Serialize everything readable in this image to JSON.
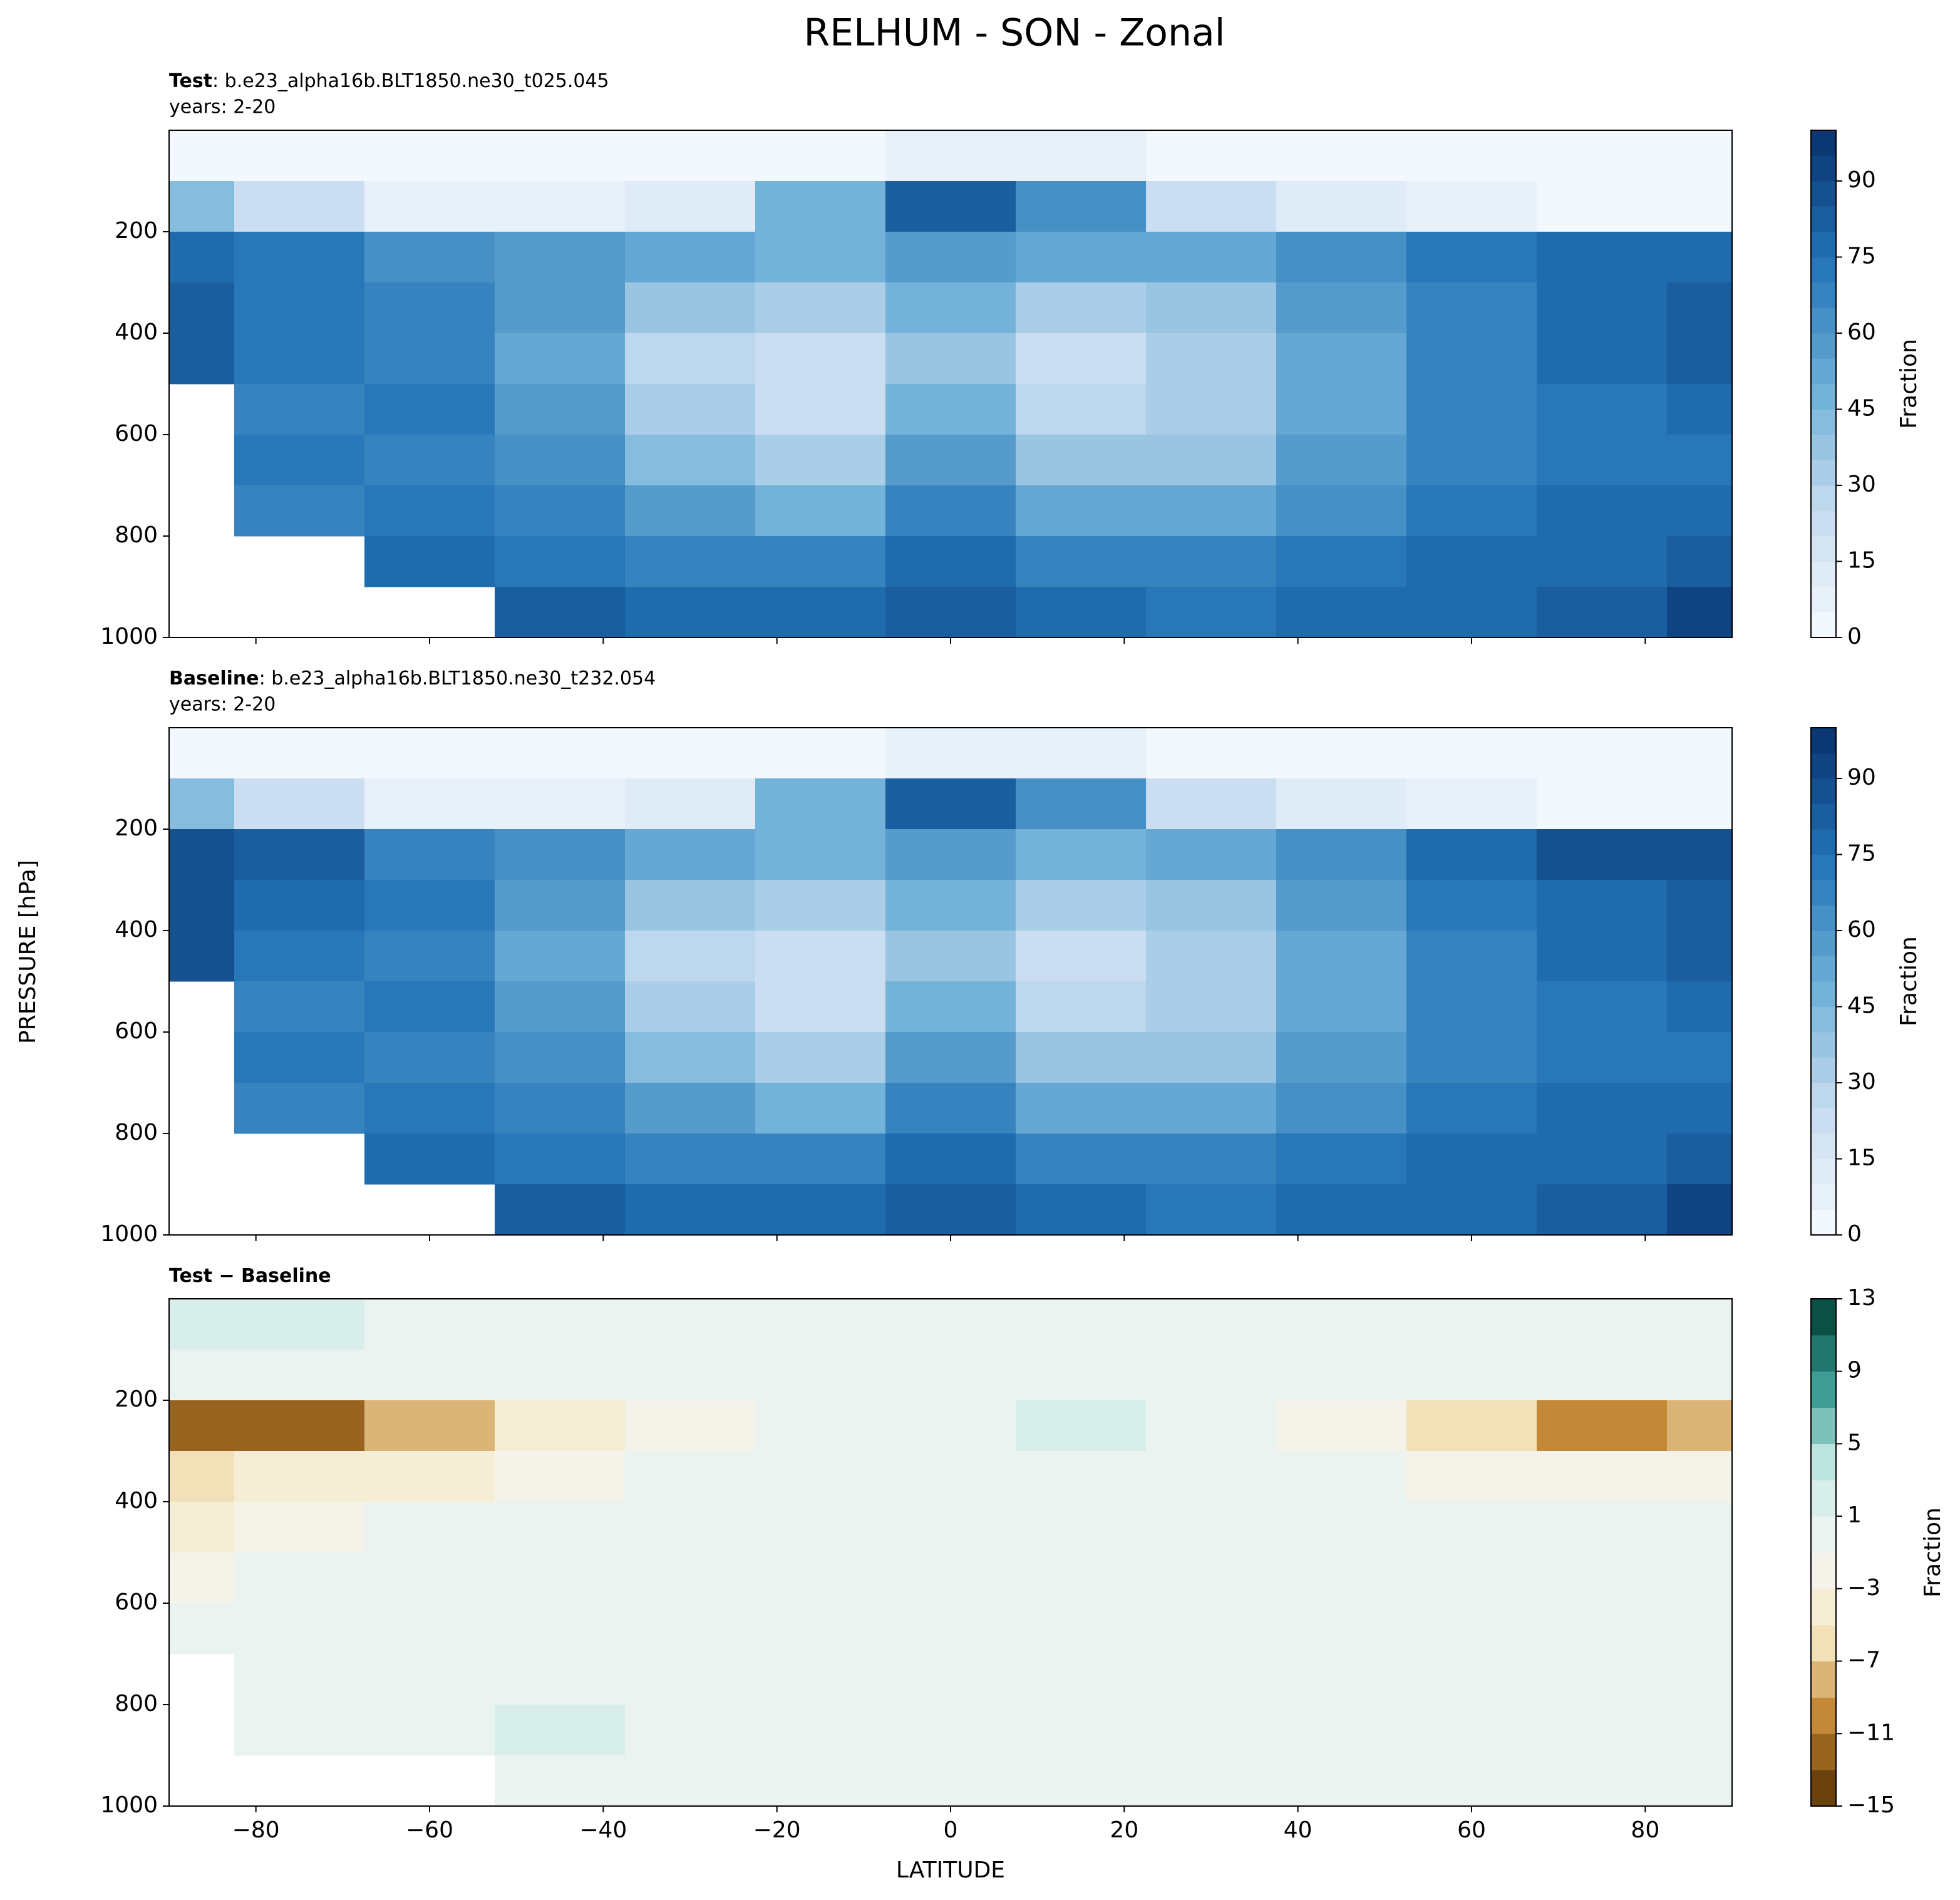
{
  "figure": {
    "title": "RELHUM - SON - Zonal",
    "xlabel": "LATITUDE",
    "ylabel": "PRESSURE [hPa]"
  },
  "chart_data": [
    {
      "type": "contour",
      "subtitle_bold": "Test",
      "subtitle": ": b.e23_alpha16b.BLT1850.ne30_t025.045",
      "years": "years: 2-20",
      "colorbar_label": "Fraction",
      "x": [
        -90,
        -75,
        -60,
        -45,
        -30,
        -15,
        0,
        15,
        30,
        45,
        60,
        75,
        90
      ],
      "y": [
        50,
        150,
        250,
        350,
        450,
        550,
        650,
        750,
        850,
        950
      ],
      "z": [
        [
          3,
          3,
          2,
          2,
          2,
          3,
          5,
          5,
          2,
          2,
          2,
          2,
          2
        ],
        [
          40,
          20,
          8,
          5,
          10,
          45,
          80,
          60,
          20,
          10,
          5,
          3,
          3
        ],
        [
          75,
          72,
          60,
          55,
          50,
          45,
          55,
          50,
          50,
          60,
          70,
          75,
          78
        ],
        [
          80,
          72,
          65,
          55,
          35,
          30,
          45,
          30,
          35,
          55,
          68,
          75,
          80
        ],
        [
          80,
          70,
          65,
          50,
          25,
          20,
          35,
          20,
          30,
          50,
          65,
          75,
          82
        ],
        [
          null,
          68,
          70,
          55,
          30,
          20,
          45,
          25,
          30,
          50,
          65,
          72,
          75
        ],
        [
          null,
          70,
          68,
          60,
          40,
          30,
          55,
          35,
          38,
          55,
          68,
          72,
          72
        ],
        [
          null,
          68,
          70,
          65,
          55,
          48,
          65,
          50,
          50,
          62,
          70,
          75,
          75
        ],
        [
          null,
          null,
          75,
          72,
          65,
          65,
          78,
          65,
          65,
          70,
          75,
          78,
          80
        ],
        [
          null,
          null,
          null,
          80,
          75,
          78,
          82,
          75,
          72,
          75,
          78,
          82,
          90
        ]
      ],
      "xlim": [
        -90,
        90
      ],
      "xticks": [
        {
          "value": -80,
          "label": "−80"
        },
        {
          "value": -60,
          "label": "−60"
        },
        {
          "value": -40,
          "label": "−40"
        },
        {
          "value": -20,
          "label": "−20"
        },
        0,
        20,
        40,
        60,
        80
      ],
      "ylim": [
        1000,
        0
      ],
      "yticks": [
        200,
        400,
        600,
        800,
        1000
      ],
      "levels": [
        0,
        5,
        10,
        15,
        20,
        25,
        30,
        35,
        40,
        45,
        50,
        55,
        60,
        65,
        70,
        75,
        80,
        85,
        90,
        95,
        100
      ],
      "clim": [
        0,
        100
      ],
      "cticks": [
        0,
        15,
        30,
        45,
        60,
        75,
        90
      ],
      "cmap": [
        "#f7fbff",
        "#c6dbef",
        "#6baed6",
        "#2171b5",
        "#08306b"
      ]
    },
    {
      "type": "contour",
      "subtitle_bold": "Baseline",
      "subtitle": ": b.e23_alpha16b.BLT1850.ne30_t232.054",
      "years": "years: 2-20",
      "colorbar_label": "Fraction",
      "x": [
        -90,
        -75,
        -60,
        -45,
        -30,
        -15,
        0,
        15,
        30,
        45,
        60,
        75,
        90
      ],
      "y": [
        50,
        150,
        250,
        350,
        450,
        550,
        650,
        750,
        850,
        950
      ],
      "z": [
        [
          1,
          1,
          2,
          2,
          2,
          3,
          5,
          5,
          2,
          2,
          2,
          2,
          2
        ],
        [
          41,
          21,
          8,
          5,
          10,
          45,
          81,
          60,
          20,
          10,
          5,
          4,
          4
        ],
        [
          87,
          84,
          68,
          60,
          53,
          45,
          55,
          49,
          50,
          63,
          77,
          85,
          87
        ],
        [
          87,
          77,
          70,
          57,
          36,
          30,
          45,
          30,
          35,
          56,
          71,
          78,
          83
        ],
        [
          85,
          73,
          66,
          51,
          25,
          20,
          35,
          20,
          30,
          50,
          66,
          76,
          83
        ],
        [
          null,
          69,
          70,
          55,
          30,
          20,
          45,
          25,
          30,
          50,
          65,
          72,
          76
        ],
        [
          null,
          71,
          68,
          60,
          40,
          30,
          55,
          35,
          38,
          55,
          68,
          72,
          73
        ],
        [
          null,
          69,
          71,
          65,
          55,
          49,
          65,
          50,
          50,
          62,
          71,
          75,
          76
        ],
        [
          null,
          null,
          76,
          71,
          65,
          66,
          78,
          65,
          65,
          70,
          76,
          78,
          81
        ],
        [
          null,
          null,
          null,
          80,
          75,
          78,
          82,
          75,
          72,
          75,
          78,
          82,
          90
        ]
      ],
      "xlim": [
        -90,
        90
      ],
      "xticks": [
        {
          "value": -80,
          "label": "−80"
        },
        {
          "value": -60,
          "label": "−60"
        },
        {
          "value": -40,
          "label": "−40"
        },
        {
          "value": -20,
          "label": "−20"
        },
        0,
        20,
        40,
        60,
        80
      ],
      "ylim": [
        1000,
        0
      ],
      "yticks": [
        200,
        400,
        600,
        800,
        1000
      ],
      "levels": [
        0,
        5,
        10,
        15,
        20,
        25,
        30,
        35,
        40,
        45,
        50,
        55,
        60,
        65,
        70,
        75,
        80,
        85,
        90,
        95,
        100
      ],
      "clim": [
        0,
        100
      ],
      "cticks": [
        0,
        15,
        30,
        45,
        60,
        75,
        90
      ],
      "cmap": [
        "#f7fbff",
        "#c6dbef",
        "#6baed6",
        "#2171b5",
        "#08306b"
      ]
    },
    {
      "type": "contour",
      "subtitle_bold": "Test − Baseline",
      "colorbar_label": "Fraction",
      "x": [
        -90,
        -75,
        -60,
        -45,
        -30,
        -15,
        0,
        15,
        30,
        45,
        60,
        75,
        90
      ],
      "y": [
        50,
        150,
        250,
        350,
        450,
        550,
        650,
        750,
        850,
        950
      ],
      "z": [
        [
          2,
          2,
          0,
          0,
          0,
          0,
          0,
          0,
          0,
          0,
          0,
          0,
          0
        ],
        [
          -1,
          -1,
          0,
          0,
          0,
          0,
          -1,
          0,
          0,
          0,
          0,
          -1,
          -1
        ],
        [
          -12,
          -12,
          -8,
          -5,
          -3,
          0,
          0,
          1,
          0,
          -3,
          -7,
          -10,
          -9
        ],
        [
          -7,
          -5,
          -5,
          -2,
          -1,
          0,
          0,
          0,
          0,
          -1,
          -3,
          -3,
          -3
        ],
        [
          -5,
          -3,
          -1,
          -1,
          0,
          0,
          0,
          0,
          0,
          0,
          -1,
          -1,
          -1
        ],
        [
          -3,
          -1,
          0,
          0,
          0,
          0,
          0,
          0,
          0,
          0,
          0,
          0,
          -1
        ],
        [
          -1,
          -1,
          0,
          0,
          0,
          0,
          0,
          0,
          0,
          0,
          0,
          0,
          -1
        ],
        [
          null,
          -1,
          -1,
          0,
          0,
          -1,
          0,
          0,
          0,
          0,
          -1,
          0,
          -1
        ],
        [
          null,
          -1,
          -1,
          2,
          0,
          -1,
          0,
          0,
          0,
          0,
          -1,
          0,
          -1
        ],
        [
          null,
          null,
          null,
          0,
          0,
          0,
          0,
          0,
          0,
          0,
          0,
          0,
          0
        ]
      ],
      "xlim": [
        -90,
        90
      ],
      "xticks": [
        {
          "value": -80,
          "label": "−80"
        },
        {
          "value": -60,
          "label": "−60"
        },
        {
          "value": -40,
          "label": "−40"
        },
        {
          "value": -20,
          "label": "−20"
        },
        0,
        20,
        40,
        60,
        80
      ],
      "ylim": [
        1000,
        0
      ],
      "yticks": [
        200,
        400,
        600,
        800,
        1000
      ],
      "levels": [
        -15,
        -13,
        -11,
        -9,
        -7,
        -5,
        -3,
        -1,
        1,
        3,
        5,
        7,
        9,
        11,
        13
      ],
      "clim": [
        -15,
        13
      ],
      "cticks": [
        {
          "value": -15,
          "label": "−15"
        },
        {
          "value": -11,
          "label": "−11"
        },
        {
          "value": -7,
          "label": "−7"
        },
        {
          "value": -3,
          "label": "−3"
        },
        1,
        5,
        9,
        13
      ],
      "cmap": [
        "#543005",
        "#bf812d",
        "#f6e8c3",
        "#f3f5f3",
        "#c7eae5",
        "#35978f",
        "#003c30"
      ]
    }
  ]
}
